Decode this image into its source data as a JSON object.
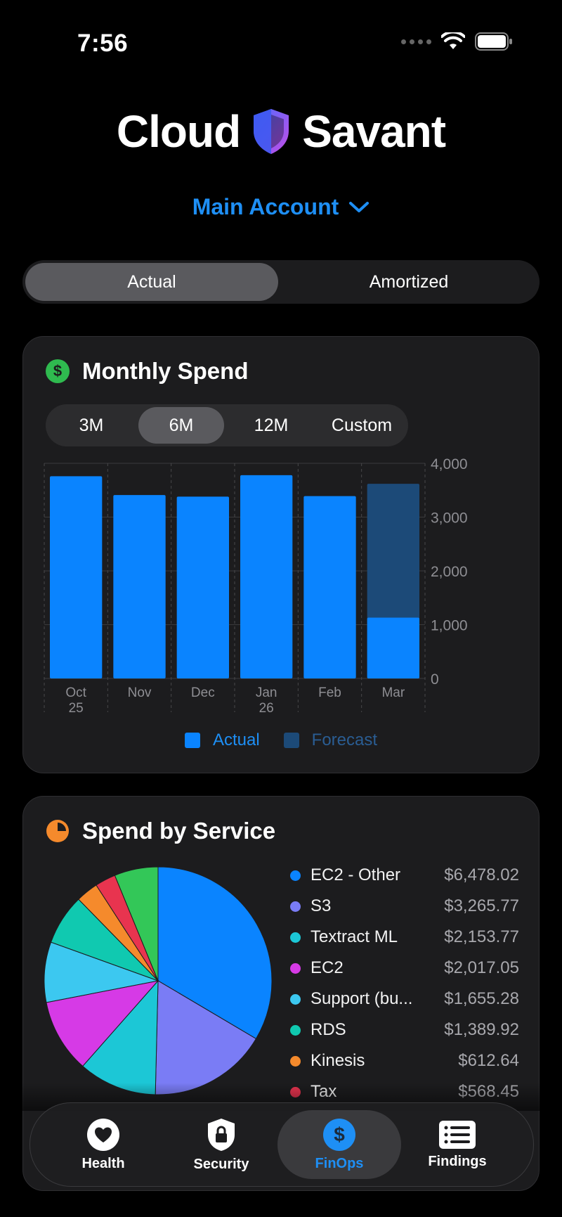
{
  "status_bar": {
    "time": "7:56"
  },
  "header": {
    "brand_left": "Cloud",
    "brand_right": "Savant",
    "account_label": "Main Account"
  },
  "cost_mode": {
    "options": [
      "Actual",
      "Amortized"
    ],
    "selected": "Actual"
  },
  "monthly_spend": {
    "title": "Monthly Spend",
    "ranges": [
      "3M",
      "6M",
      "12M",
      "Custom"
    ],
    "selected_range": "6M",
    "legend": {
      "actual": "Actual",
      "forecast": "Forecast"
    }
  },
  "chart_data": {
    "type": "bar",
    "categories": [
      "Oct 25",
      "Nov",
      "Dec",
      "Jan 26",
      "Feb",
      "Mar"
    ],
    "category_lines": [
      [
        "Oct",
        "25"
      ],
      [
        "Nov"
      ],
      [
        "Dec"
      ],
      [
        "Jan",
        "26"
      ],
      [
        "Feb"
      ],
      [
        "Mar"
      ]
    ],
    "series": [
      {
        "name": "Actual",
        "values": [
          3760,
          3410,
          3380,
          3780,
          3390,
          1130
        ]
      },
      {
        "name": "Forecast",
        "values": [
          0,
          0,
          0,
          0,
          0,
          3620
        ]
      }
    ],
    "ylim": [
      0,
      4000
    ],
    "yticks": [
      0,
      1000,
      2000,
      3000,
      4000
    ],
    "ytick_labels": [
      "0",
      "1,000",
      "2,000",
      "3,000",
      "4,000"
    ],
    "colors": {
      "actual": "#0a84ff",
      "forecast": "#1c4a78"
    }
  },
  "spend_by_service": {
    "title": "Spend by Service",
    "items": [
      {
        "name": "EC2 - Other",
        "value": "$6,478.02",
        "amount": 6478.02,
        "color": "#0a84ff"
      },
      {
        "name": "S3",
        "value": "$3,265.77",
        "amount": 3265.77,
        "color": "#7a7cf5"
      },
      {
        "name": "Textract ML",
        "value": "$2,153.77",
        "amount": 2153.77,
        "color": "#1cc7d6"
      },
      {
        "name": "EC2",
        "value": "$2,017.05",
        "amount": 2017.05,
        "color": "#d63ae6"
      },
      {
        "name": "Support (bu...",
        "value": "$1,655.28",
        "amount": 1655.28,
        "color": "#3cc8f0"
      },
      {
        "name": "RDS",
        "value": "$1,389.92",
        "amount": 1389.92,
        "color": "#10c9b0"
      },
      {
        "name": "Kinesis",
        "value": "$612.64",
        "amount": 612.64,
        "color": "#f58a2c"
      },
      {
        "name": "Tax",
        "value": "$568.45",
        "amount": 568.45,
        "color": "#e8344f"
      },
      {
        "name": "",
        "value": "",
        "amount": 1200,
        "color": "#33c758"
      }
    ]
  },
  "tab_bar": {
    "tabs": [
      {
        "label": "Health",
        "icon": "heart-icon"
      },
      {
        "label": "Security",
        "icon": "lock-shield-icon"
      },
      {
        "label": "FinOps",
        "icon": "dollar-icon"
      },
      {
        "label": "Findings",
        "icon": "list-icon"
      }
    ],
    "selected": "FinOps"
  }
}
